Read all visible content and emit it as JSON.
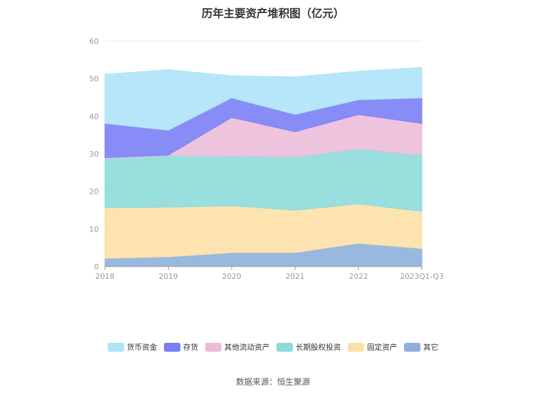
{
  "chart_data": {
    "type": "area",
    "stacked": true,
    "title": "历年主要资产堆积图（亿元）",
    "categories": [
      "2018",
      "2019",
      "2020",
      "2021",
      "2022",
      "2023Q1-Q3"
    ],
    "ylim": [
      0,
      60
    ],
    "yticks": [
      0,
      10,
      20,
      30,
      40,
      50,
      60
    ],
    "grid": true,
    "legend_position": "bottom",
    "series": [
      {
        "name": "其它",
        "color": "#8eb0dc",
        "values": [
          2.2,
          2.6,
          3.7,
          3.7,
          6.2,
          4.8
        ]
      },
      {
        "name": "固定资产",
        "color": "#fde0a6",
        "values": [
          13.5,
          13.2,
          12.5,
          11.3,
          10.5,
          9.9
        ]
      },
      {
        "name": "长期股权投资",
        "color": "#8ddbd9",
        "values": [
          13.0,
          13.8,
          13.2,
          14.2,
          14.6,
          15.0
        ]
      },
      {
        "name": "其他流动资产",
        "color": "#ecbcd9",
        "values": [
          0.3,
          0.1,
          10.3,
          6.7,
          9.2,
          8.4
        ]
      },
      {
        "name": "存货",
        "color": "#7b7ff5",
        "values": [
          9.1,
          6.6,
          5.2,
          4.6,
          3.9,
          6.8
        ]
      },
      {
        "name": "货币资金",
        "color": "#aee3f8",
        "values": [
          13.1,
          16.1,
          5.9,
          10.0,
          7.6,
          8.1
        ]
      }
    ]
  },
  "source": "数据来源：恒生聚源"
}
